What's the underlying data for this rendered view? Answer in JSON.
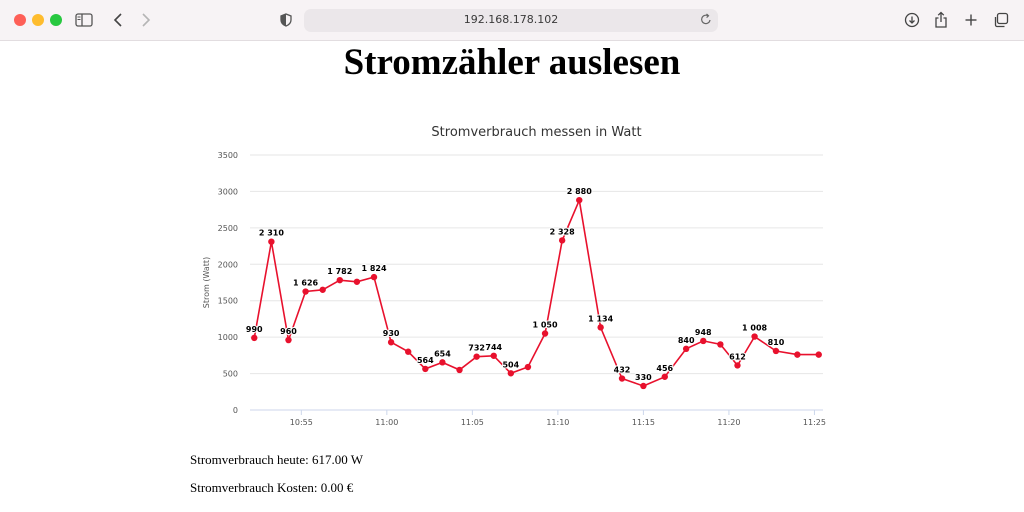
{
  "browser": {
    "url": "192.168.178.102",
    "icons": [
      "sidebar-icon",
      "back-icon",
      "forward-icon",
      "shield-icon",
      "reload-icon",
      "download-icon",
      "share-icon",
      "new-tab-icon",
      "tab-overview-icon"
    ]
  },
  "page": {
    "title": "Stromzähler auslesen",
    "stats": {
      "today": "Stromverbrauch heute: 617.00 W",
      "cost": "Stromverbrauch Kosten: 0.00 €"
    }
  },
  "chart_data": {
    "type": "line",
    "title": "Stromverbrauch messen in Watt",
    "ylabel": "Strom (Watt)",
    "xlabel": "",
    "ylim": [
      0,
      3500
    ],
    "yticks": [
      0,
      500,
      1000,
      1500,
      2000,
      2500,
      3000,
      3500
    ],
    "xlim": [
      "10:52:00",
      "11:25:30"
    ],
    "xticks": [
      "10:55",
      "11:00",
      "11:05",
      "11:10",
      "11:15",
      "11:20",
      "11:25"
    ],
    "grid": true,
    "color": "#e8112d",
    "series": [
      {
        "x": [
          "10:52:15",
          "10:53:15",
          "10:54:15",
          "10:55:15",
          "10:56:15",
          "10:57:15",
          "10:58:15",
          "10:59:15",
          "11:00:15",
          "11:01:15",
          "11:02:15",
          "11:03:15",
          "11:04:15",
          "11:05:15",
          "11:06:15",
          "11:07:15",
          "11:08:15",
          "11:09:15",
          "11:10:15",
          "11:11:15",
          "11:12:30",
          "11:13:45",
          "11:15:00",
          "11:16:15",
          "11:17:30",
          "11:18:30",
          "11:19:30",
          "11:20:30",
          "11:21:30",
          "11:22:45",
          "11:24:00",
          "11:25:15"
        ],
        "values": [
          990,
          2310,
          960,
          1626,
          1650,
          1782,
          1760,
          1824,
          930,
          800,
          564,
          654,
          550,
          732,
          744,
          504,
          590,
          1050,
          2328,
          2880,
          1134,
          432,
          330,
          456,
          840,
          948,
          900,
          612,
          1008,
          810,
          760,
          760
        ],
        "labels": [
          "990",
          "2 310",
          "960",
          "1 626",
          "",
          "1 782",
          "",
          "1 824",
          "930",
          "",
          "564",
          "654",
          "",
          "732",
          "744",
          "504",
          "",
          "1 050",
          "2 328",
          "2 880",
          "1 134",
          "432",
          "330",
          "456",
          "840",
          "948",
          "",
          "612",
          "1 008",
          "810",
          "",
          ""
        ]
      }
    ]
  }
}
